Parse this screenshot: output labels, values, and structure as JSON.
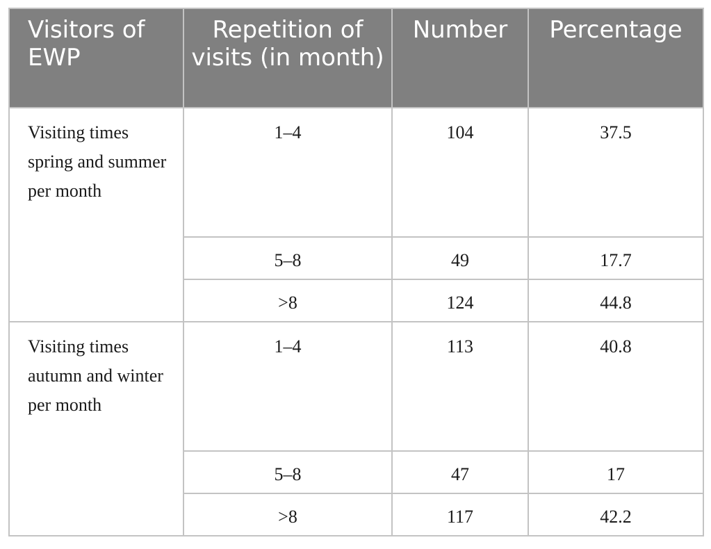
{
  "headers": {
    "visitors": "Visitors of EWP",
    "repetition": "Repetition of visits (in month)",
    "number": "Number",
    "percentage": "Percentage"
  },
  "groups": [
    {
      "label": "Visiting times spring and summer per month",
      "rows": [
        {
          "repetition": "1–4",
          "number": "104",
          "percentage": "37.5"
        },
        {
          "repetition": "5–8",
          "number": "49",
          "percentage": "17.7"
        },
        {
          "repetition": ">8",
          "number": "124",
          "percentage": "44.8"
        }
      ]
    },
    {
      "label": "Visiting times autumn and winter per month",
      "rows": [
        {
          "repetition": "1–4",
          "number": "113",
          "percentage": "40.8"
        },
        {
          "repetition": "5–8",
          "number": "47",
          "percentage": "17"
        },
        {
          "repetition": ">8",
          "number": "117",
          "percentage": "42.2"
        }
      ]
    }
  ]
}
